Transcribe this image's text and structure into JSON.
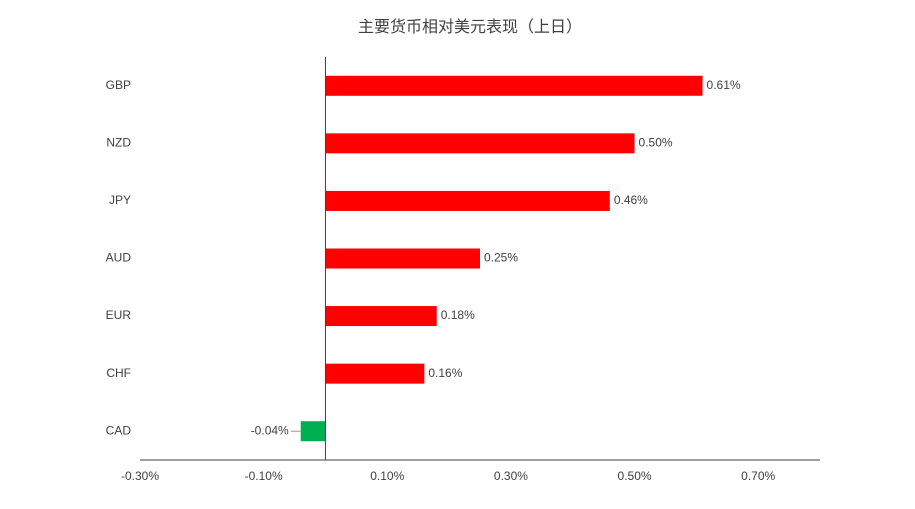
{
  "chart_data": {
    "type": "bar",
    "orientation": "horizontal",
    "title": "主要货币相对美元表现（上日）",
    "categories": [
      "GBP",
      "NZD",
      "JPY",
      "AUD",
      "EUR",
      "CHF",
      "CAD"
    ],
    "values": [
      0.61,
      0.5,
      0.46,
      0.25,
      0.18,
      0.16,
      -0.04
    ],
    "value_labels": [
      "0.61%",
      "0.50%",
      "0.46%",
      "0.25%",
      "0.18%",
      "0.16%",
      "-0.04%"
    ],
    "colors": [
      "#ff0000",
      "#ff0000",
      "#ff0000",
      "#ff0000",
      "#ff0000",
      "#ff0000",
      "#00b050"
    ],
    "xlim": [
      -0.3,
      0.8
    ],
    "xticks": [
      {
        "value": -0.3,
        "label": "-0.30%"
      },
      {
        "value": -0.1,
        "label": "-0.10%"
      },
      {
        "value": 0.1,
        "label": "0.10%"
      },
      {
        "value": 0.3,
        "label": "0.30%"
      },
      {
        "value": 0.5,
        "label": "0.50%"
      },
      {
        "value": 0.7,
        "label": "0.70%"
      }
    ],
    "grid": false
  }
}
